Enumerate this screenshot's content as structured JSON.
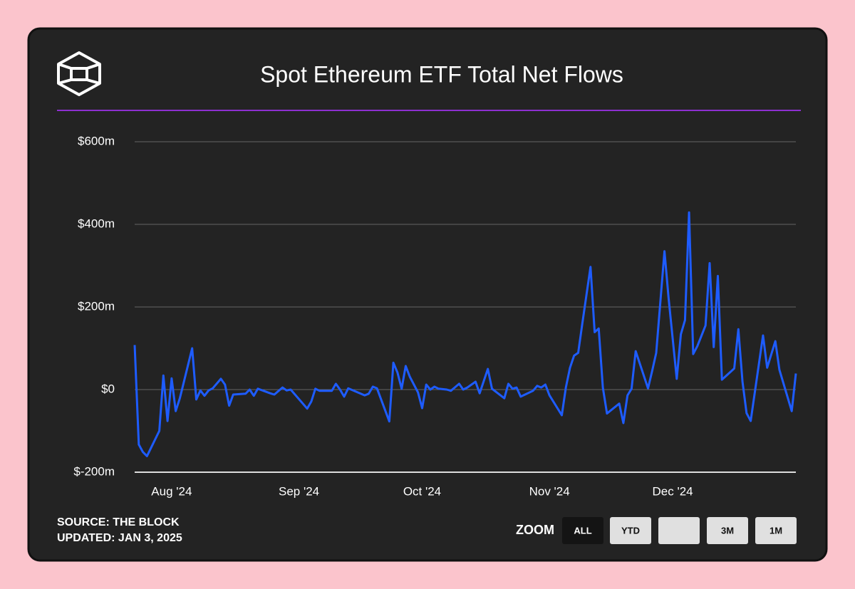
{
  "chart_data": {
    "type": "line",
    "title": "Spot Ethereum ETF Total Net Flows",
    "x": [
      205,
      206,
      207,
      208,
      211,
      212,
      213,
      214,
      215,
      216,
      219,
      220,
      221,
      222,
      223,
      224,
      226,
      227,
      228,
      229,
      232,
      233,
      234,
      235,
      238,
      239,
      241,
      242,
      243,
      247,
      248,
      249,
      250,
      252,
      253,
      254,
      255,
      256,
      257,
      261,
      262,
      263,
      264,
      267,
      268,
      269,
      270,
      271,
      272,
      274,
      275,
      276,
      277,
      278,
      279,
      281,
      282,
      284,
      285,
      286,
      288,
      289,
      291,
      292,
      295,
      296,
      297,
      298,
      299,
      302,
      303,
      304,
      305,
      306,
      309,
      310,
      311,
      312,
      313,
      314,
      316,
      317,
      318,
      319,
      320,
      323,
      324,
      325,
      326,
      327,
      330,
      331,
      332,
      334,
      335,
      337,
      338,
      339,
      340,
      341,
      342,
      344,
      345,
      346,
      347,
      348,
      351,
      352,
      353,
      354,
      355,
      358,
      359,
      361,
      362,
      365,
      366
    ],
    "values": [
      108,
      -133,
      -151,
      -161,
      -100,
      34,
      -76,
      27,
      -52,
      -21,
      100,
      -24,
      -2,
      -15,
      -2,
      3,
      26,
      12,
      -39,
      -12,
      -10,
      0,
      -15,
      2,
      -9,
      -12,
      5,
      -2,
      0,
      -46,
      -29,
      2,
      -3,
      -3,
      -3,
      14,
      0,
      -17,
      3,
      -14,
      -10,
      7,
      3,
      -77,
      65,
      41,
      2,
      57,
      31,
      -7,
      -45,
      12,
      0,
      7,
      2,
      0,
      -3,
      14,
      0,
      5,
      19,
      -9,
      50,
      2,
      -21,
      14,
      2,
      5,
      -17,
      -3,
      9,
      5,
      12,
      -14,
      -62,
      5,
      53,
      82,
      89,
      160,
      297,
      139,
      148,
      5,
      -58,
      -34,
      -81,
      -14,
      2,
      93,
      3,
      45,
      89,
      335,
      223,
      26,
      134,
      168,
      429,
      86,
      105,
      155,
      306,
      103,
      275,
      24,
      51,
      146,
      19,
      -57,
      -76,
      131,
      53,
      117,
      48,
      -52,
      39
    ],
    "color": "#1e5cff",
    "xlim": [
      205,
      366
    ],
    "xticks": [
      {
        "value": 214,
        "label": "Aug '24"
      },
      {
        "value": 245,
        "label": "Sep '24"
      },
      {
        "value": 275,
        "label": "Oct '24"
      },
      {
        "value": 306,
        "label": "Nov '24"
      },
      {
        "value": 336,
        "label": "Dec '24"
      }
    ],
    "ylim": [
      -200,
      600
    ],
    "yticks": [
      {
        "value": -200,
        "label": "$-200m"
      },
      {
        "value": 0,
        "label": "$0"
      },
      {
        "value": 200,
        "label": "$200m"
      },
      {
        "value": 400,
        "label": "$400m"
      },
      {
        "value": 600,
        "label": "$600m"
      }
    ],
    "grid": true
  },
  "footer": {
    "source": "SOURCE: THE BLOCK",
    "updated": "UPDATED: JAN 3, 2025"
  },
  "zoom": {
    "label": "ZOOM",
    "buttons": [
      "ALL",
      "YTD",
      "3M",
      "1M"
    ]
  }
}
